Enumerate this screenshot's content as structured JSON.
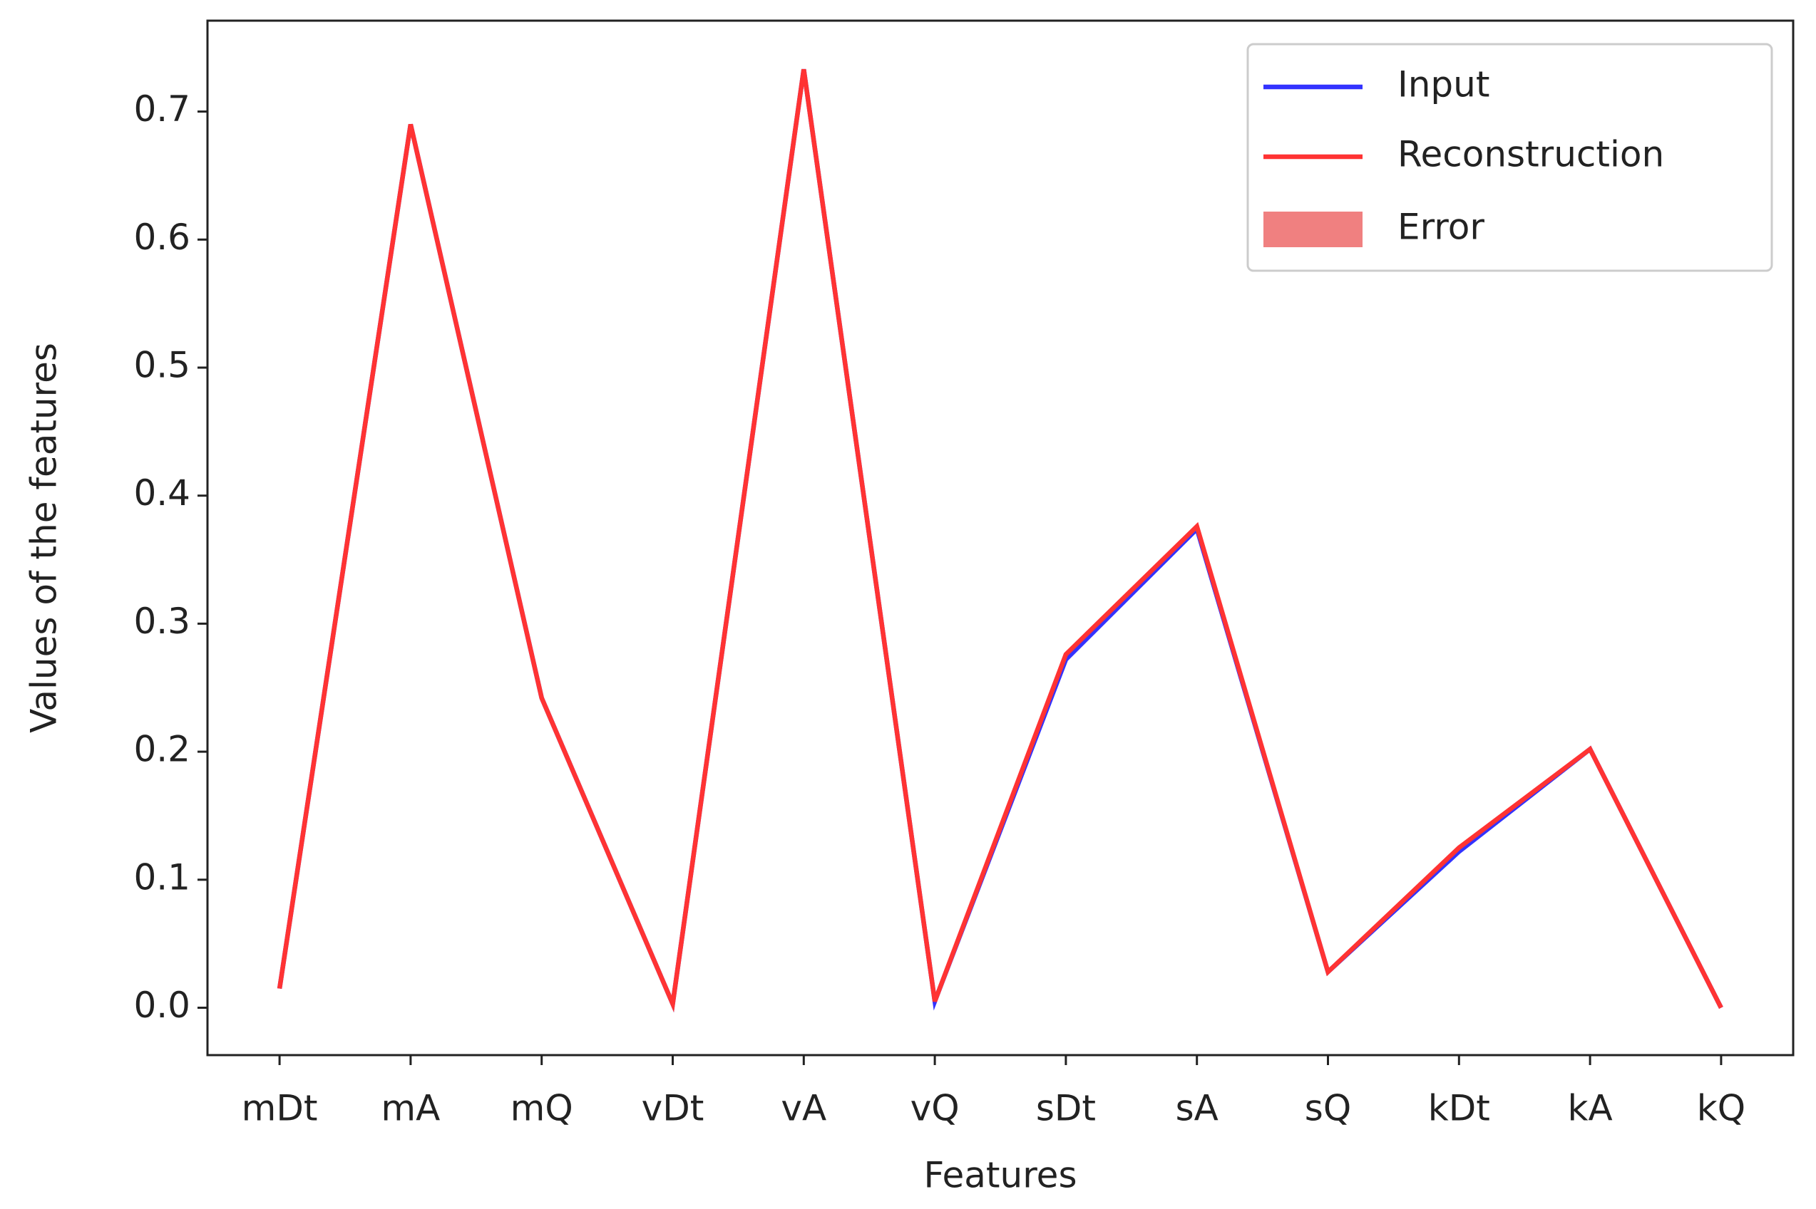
{
  "chart_data": {
    "type": "line",
    "x_label": "Features",
    "y_label": "Values of the features",
    "categories": [
      "mDt",
      "mA",
      "mQ",
      "vDt",
      "vA",
      "vQ",
      "sDt",
      "sA",
      "sQ",
      "kDt",
      "kA",
      "kQ"
    ],
    "series": [
      {
        "name": "Input",
        "color": "#3333ff",
        "values": [
          0.015,
          0.69,
          0.242,
          0.003,
          0.733,
          0.005,
          0.272,
          0.374,
          0.028,
          0.122,
          0.202,
          0.0
        ]
      },
      {
        "name": "Reconstruction",
        "color": "#ff3333",
        "values": [
          0.015,
          0.69,
          0.242,
          0.003,
          0.733,
          0.005,
          0.276,
          0.376,
          0.028,
          0.125,
          0.202,
          0.0
        ]
      }
    ],
    "fill_between": {
      "name": "Error",
      "color": "#f08080"
    },
    "ylim": [
      -0.037,
      0.771
    ],
    "yticks": [
      {
        "value": 0,
        "label": "0.0"
      },
      0.1,
      0.2,
      0.3,
      0.4,
      0.5,
      0.6,
      0.7
    ],
    "legend": "upper right"
  }
}
